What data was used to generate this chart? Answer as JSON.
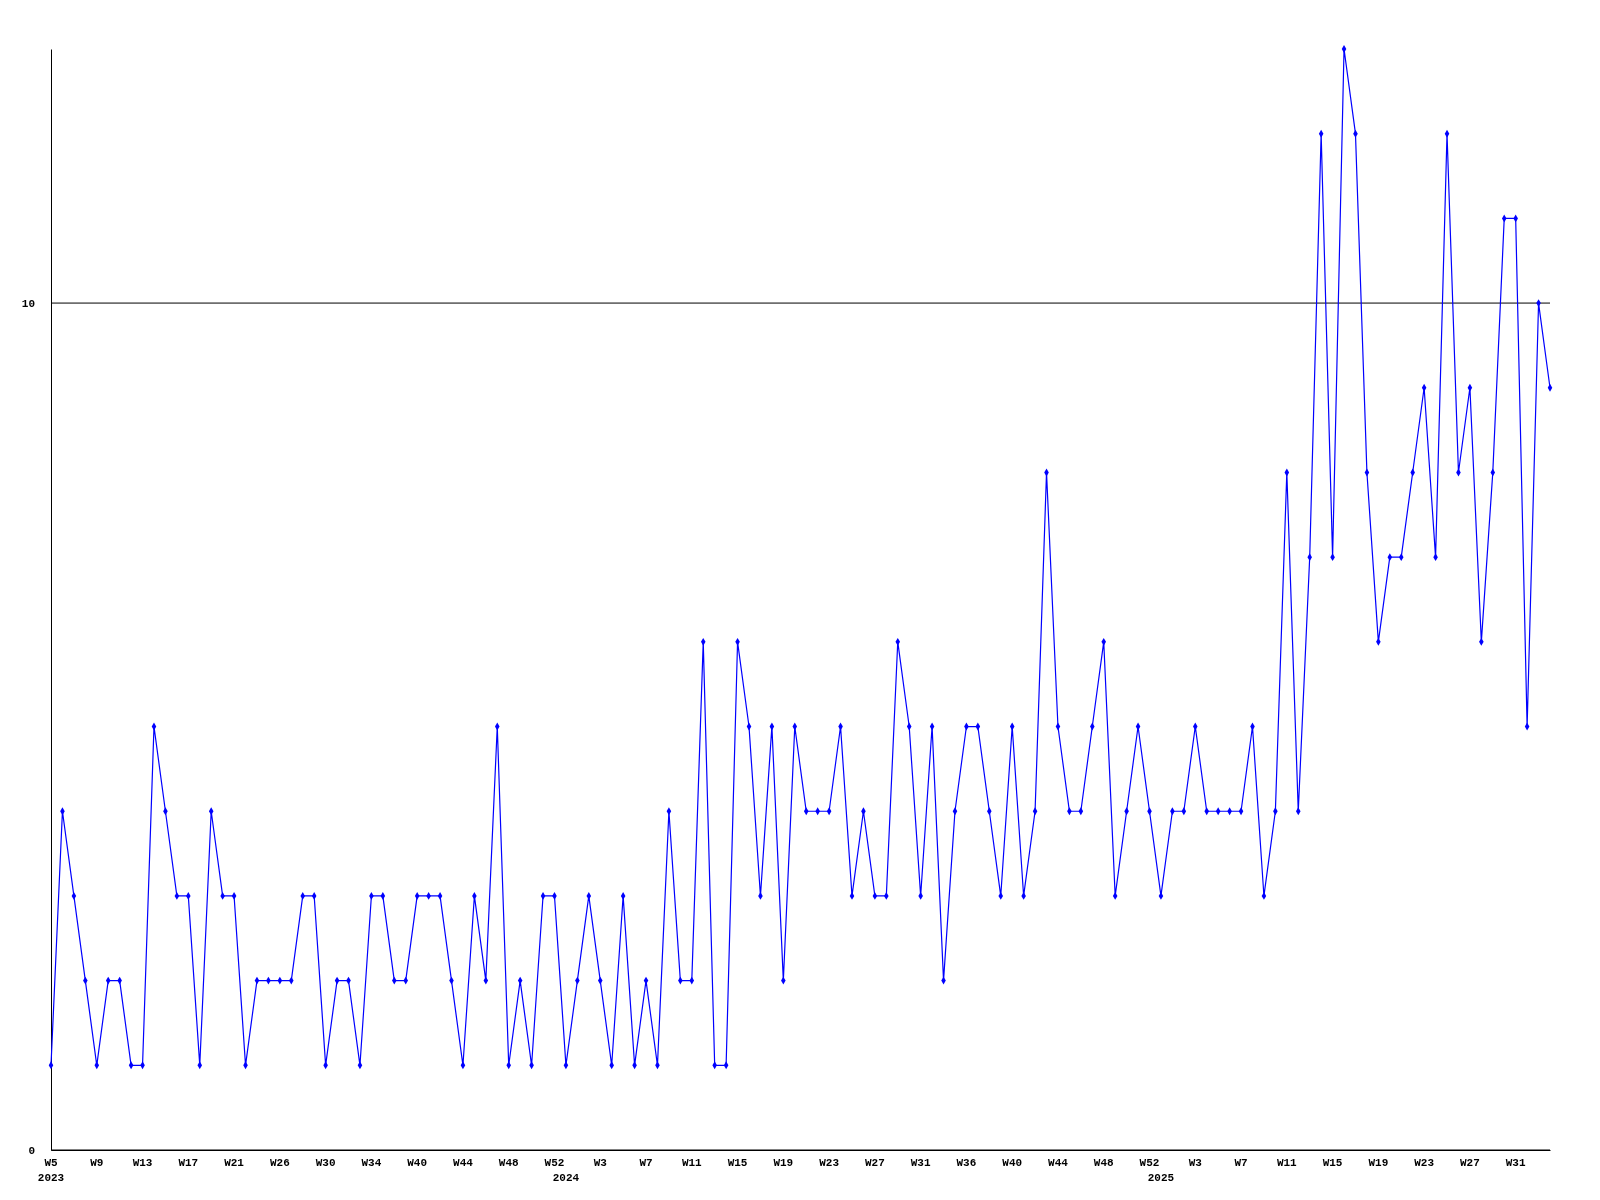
{
  "chart_data": {
    "type": "line",
    "categories": [
      "W5\n2023",
      null,
      null,
      null,
      "W9",
      null,
      null,
      null,
      "W13",
      null,
      null,
      null,
      "W17",
      null,
      null,
      null,
      "W21",
      null,
      null,
      null,
      "W26",
      null,
      null,
      null,
      "W30",
      null,
      null,
      null,
      "W34",
      null,
      null,
      null,
      "W40",
      null,
      null,
      null,
      "W44",
      null,
      null,
      null,
      "W48",
      null,
      null,
      null,
      "W52",
      "\n2024",
      null,
      null,
      "W3",
      null,
      null,
      null,
      "W7",
      null,
      null,
      null,
      "W11",
      null,
      null,
      null,
      "W15",
      null,
      null,
      null,
      "W19",
      null,
      null,
      null,
      "W23",
      null,
      null,
      null,
      "W27",
      null,
      null,
      null,
      "W31",
      null,
      null,
      null,
      "W36",
      null,
      null,
      null,
      "W40",
      null,
      null,
      null,
      "W44",
      null,
      null,
      null,
      "W48",
      null,
      null,
      null,
      "W52",
      "\n2025",
      null,
      null,
      "W3",
      null,
      null,
      null,
      "W7",
      null,
      null,
      null,
      "W11",
      null,
      null,
      null,
      "W15",
      null,
      null,
      null,
      "W19",
      null,
      null,
      null,
      "W23",
      null,
      null,
      null,
      "W27",
      null,
      null,
      null,
      "W31",
      null,
      null,
      null
    ],
    "series": [
      {
        "color": "#0000ff",
        "values": [
          1,
          4,
          3,
          2,
          1,
          2,
          2,
          1,
          1,
          5,
          4,
          3,
          3,
          1,
          4,
          3,
          3,
          1,
          2,
          2,
          2,
          2,
          3,
          3,
          1,
          2,
          2,
          1,
          3,
          3,
          2,
          2,
          3,
          3,
          3,
          2,
          1,
          3,
          2,
          5,
          1,
          2,
          1,
          3,
          3,
          1,
          2,
          3,
          2,
          1,
          3,
          1,
          2,
          1,
          4,
          2,
          2,
          6,
          1,
          1,
          6,
          5,
          3,
          5,
          2,
          5,
          4,
          4,
          4,
          5,
          3,
          4,
          3,
          3,
          6,
          5,
          3,
          5,
          2,
          4,
          5,
          5,
          4,
          3,
          5,
          3,
          4,
          8,
          5,
          4,
          4,
          5,
          6,
          3,
          4,
          5,
          4,
          3,
          4,
          4,
          5,
          4,
          4,
          4,
          4,
          5,
          3,
          4,
          8,
          4,
          7,
          12,
          7,
          13,
          12,
          8,
          6,
          7,
          7,
          8,
          9,
          7,
          12,
          8,
          9,
          6,
          8,
          11,
          11,
          5,
          10,
          9
        ]
      }
    ],
    "ylim": [
      0,
      13
    ],
    "yticks": [
      0,
      10
    ],
    "grid": "y",
    "marker": "diamond",
    "line_style": "solid"
  }
}
